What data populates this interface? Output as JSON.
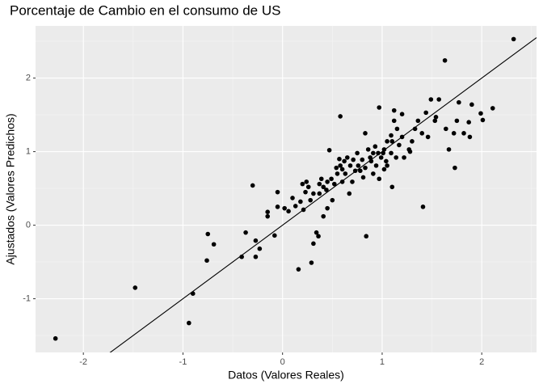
{
  "chart_data": {
    "type": "scatter",
    "title": "Porcentaje de Cambio en el consumo de US",
    "x_label": "Datos (Valores Reales)",
    "y_label": "Ajustados (Valores Predichos)",
    "xlim": [
      -2.48,
      2.55
    ],
    "ylim": [
      -1.73,
      2.71
    ],
    "xticks": [
      -2,
      -1,
      0,
      1,
      2
    ],
    "yticks": [
      -1,
      0,
      1,
      2
    ],
    "grid": true,
    "color": "#000000",
    "line": {
      "intercept": 0,
      "slope": 1,
      "color": "#000000"
    },
    "x": [
      -2.28,
      -1.48,
      -0.9,
      -0.94,
      -0.75,
      -0.69,
      -0.76,
      -0.41,
      -0.37,
      -0.27,
      -0.27,
      -0.23,
      -0.3,
      -0.15,
      -0.15,
      -0.08,
      -0.05,
      -0.05,
      0.02,
      0.1,
      0.16,
      0.29,
      0.31,
      0.34,
      0.36,
      0.41,
      0.45,
      0.13,
      0.18,
      0.23,
      0.2,
      0.26,
      0.31,
      0.37,
      0.39,
      0.44,
      0.5,
      0.52,
      0.55,
      0.58,
      0.47,
      0.57,
      0.6,
      0.63,
      0.67,
      0.7,
      0.73,
      0.76,
      0.8,
      0.83,
      0.83,
      0.84,
      0.58,
      0.89,
      0.91,
      0.94,
      0.97,
      0.97,
      0.99,
      1.02,
      1.04,
      1.05,
      1.09,
      1.1,
      1.12,
      1.09,
      1.14,
      1.17,
      1.2,
      1.2,
      1.27,
      1.3,
      1.33,
      1.36,
      1.41,
      1.4,
      1.44,
      1.46,
      1.49,
      1.53,
      1.57,
      1.54,
      1.64,
      1.63,
      1.67,
      1.72,
      1.75,
      1.77,
      1.73,
      1.82,
      1.87,
      1.88,
      1.9,
      1.99,
      2.01,
      2.11,
      2.32,
      0.65,
      0.71,
      0.75,
      0.86,
      0.88,
      0.93,
      0.96,
      1.01,
      0.78,
      0.81,
      0.68,
      0.62,
      0.54,
      0.49,
      0.45,
      0.41,
      0.37,
      0.28,
      0.21,
      0.06,
      1.1,
      1.15,
      1.05,
      1.02,
      1.22,
      1.28,
      1.12,
      0.91,
      0.6,
      0.24
    ],
    "values": [
      -1.54,
      -0.85,
      -0.93,
      -1.33,
      -0.12,
      -0.26,
      -0.48,
      -0.43,
      -0.1,
      -0.21,
      -0.43,
      -0.32,
      0.54,
      0.18,
      0.12,
      -0.14,
      0.45,
      0.25,
      0.23,
      0.37,
      -0.6,
      -0.51,
      -0.25,
      -0.1,
      -0.15,
      0.12,
      0.23,
      0.26,
      0.32,
      0.45,
      0.56,
      0.52,
      0.43,
      0.56,
      0.63,
      0.48,
      0.34,
      0.56,
      0.7,
      0.81,
      1.02,
      0.9,
      0.76,
      0.7,
      0.43,
      0.59,
      0.74,
      0.81,
      0.89,
      0.78,
      1.25,
      -0.15,
      1.48,
      0.87,
      0.98,
      0.81,
      0.63,
      1.6,
      0.92,
      1.03,
      0.87,
      1.14,
      1.22,
      0.52,
      1.56,
      0.98,
      0.92,
      1.09,
      1.2,
      1.51,
      1.03,
      1.14,
      1.31,
      1.42,
      0.25,
      1.25,
      1.53,
      1.2,
      1.71,
      1.42,
      1.71,
      1.47,
      1.31,
      2.24,
      1.03,
      1.25,
      1.42,
      1.67,
      0.78,
      1.25,
      1.4,
      1.2,
      1.64,
      1.52,
      1.43,
      1.59,
      2.53,
      0.92,
      0.89,
      0.98,
      1.03,
      0.92,
      1.07,
      0.98,
      0.98,
      0.74,
      0.65,
      0.81,
      0.87,
      0.78,
      0.63,
      0.59,
      0.52,
      0.43,
      0.34,
      0.21,
      0.19,
      1.14,
      1.31,
      0.81,
      0.76,
      0.92,
      1.0,
      1.42,
      0.7,
      0.59,
      0.59
    ]
  }
}
